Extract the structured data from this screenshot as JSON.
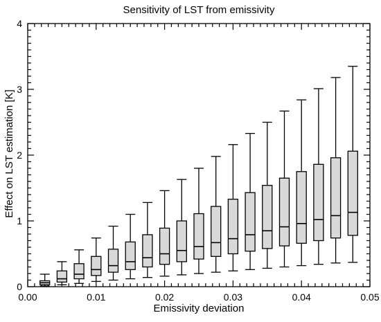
{
  "chart_data": {
    "type": "box",
    "title": "Sensitivity of LST from emissivity",
    "xlabel": "Emissivity deviation",
    "ylabel": "Effect on LST estimation [K]",
    "xlim": [
      0.0,
      0.05
    ],
    "ylim": [
      0,
      4
    ],
    "x_ticks": [
      "0.00",
      "0.01",
      "0.02",
      "0.03",
      "0.04",
      "0.05"
    ],
    "y_ticks": [
      "0",
      "1",
      "2",
      "3",
      "4"
    ],
    "grid": false,
    "legend": "none",
    "box_fill": "#d9d9d9",
    "line_color": "#000000",
    "boxes": [
      {
        "x": 0.0025,
        "whisker_low": 0.01,
        "q1": 0.03,
        "median": 0.06,
        "q3": 0.09,
        "whisker_high": 0.19
      },
      {
        "x": 0.005,
        "whisker_low": 0.03,
        "q1": 0.07,
        "median": 0.12,
        "q3": 0.24,
        "whisker_high": 0.38
      },
      {
        "x": 0.0075,
        "whisker_low": 0.05,
        "q1": 0.12,
        "median": 0.19,
        "q3": 0.35,
        "whisker_high": 0.56
      },
      {
        "x": 0.01,
        "whisker_low": 0.08,
        "q1": 0.17,
        "median": 0.26,
        "q3": 0.46,
        "whisker_high": 0.74
      },
      {
        "x": 0.0125,
        "whisker_low": 0.1,
        "q1": 0.22,
        "median": 0.32,
        "q3": 0.57,
        "whisker_high": 0.92
      },
      {
        "x": 0.015,
        "whisker_low": 0.12,
        "q1": 0.26,
        "median": 0.38,
        "q3": 0.68,
        "whisker_high": 1.1
      },
      {
        "x": 0.0175,
        "whisker_low": 0.14,
        "q1": 0.3,
        "median": 0.44,
        "q3": 0.79,
        "whisker_high": 1.28
      },
      {
        "x": 0.02,
        "whisker_low": 0.16,
        "q1": 0.34,
        "median": 0.5,
        "q3": 0.89,
        "whisker_high": 1.46
      },
      {
        "x": 0.0225,
        "whisker_low": 0.18,
        "q1": 0.38,
        "median": 0.55,
        "q3": 1.0,
        "whisker_high": 1.63
      },
      {
        "x": 0.025,
        "whisker_low": 0.2,
        "q1": 0.42,
        "median": 0.61,
        "q3": 1.11,
        "whisker_high": 1.8
      },
      {
        "x": 0.0275,
        "whisker_low": 0.22,
        "q1": 0.46,
        "median": 0.67,
        "q3": 1.22,
        "whisker_high": 1.98
      },
      {
        "x": 0.03,
        "whisker_low": 0.24,
        "q1": 0.5,
        "median": 0.73,
        "q3": 1.33,
        "whisker_high": 2.16
      },
      {
        "x": 0.0325,
        "whisker_low": 0.26,
        "q1": 0.54,
        "median": 0.79,
        "q3": 1.43,
        "whisker_high": 2.33
      },
      {
        "x": 0.035,
        "whisker_low": 0.28,
        "q1": 0.58,
        "median": 0.85,
        "q3": 1.54,
        "whisker_high": 2.5
      },
      {
        "x": 0.0375,
        "whisker_low": 0.3,
        "q1": 0.62,
        "median": 0.91,
        "q3": 1.65,
        "whisker_high": 2.67
      },
      {
        "x": 0.04,
        "whisker_low": 0.32,
        "q1": 0.66,
        "median": 0.96,
        "q3": 1.75,
        "whisker_high": 2.84
      },
      {
        "x": 0.0425,
        "whisker_low": 0.34,
        "q1": 0.7,
        "median": 1.02,
        "q3": 1.86,
        "whisker_high": 3.01
      },
      {
        "x": 0.045,
        "whisker_low": 0.36,
        "q1": 0.74,
        "median": 1.08,
        "q3": 1.96,
        "whisker_high": 3.18
      },
      {
        "x": 0.0475,
        "whisker_low": 0.37,
        "q1": 0.78,
        "median": 1.13,
        "q3": 2.06,
        "whisker_high": 3.35
      }
    ]
  }
}
